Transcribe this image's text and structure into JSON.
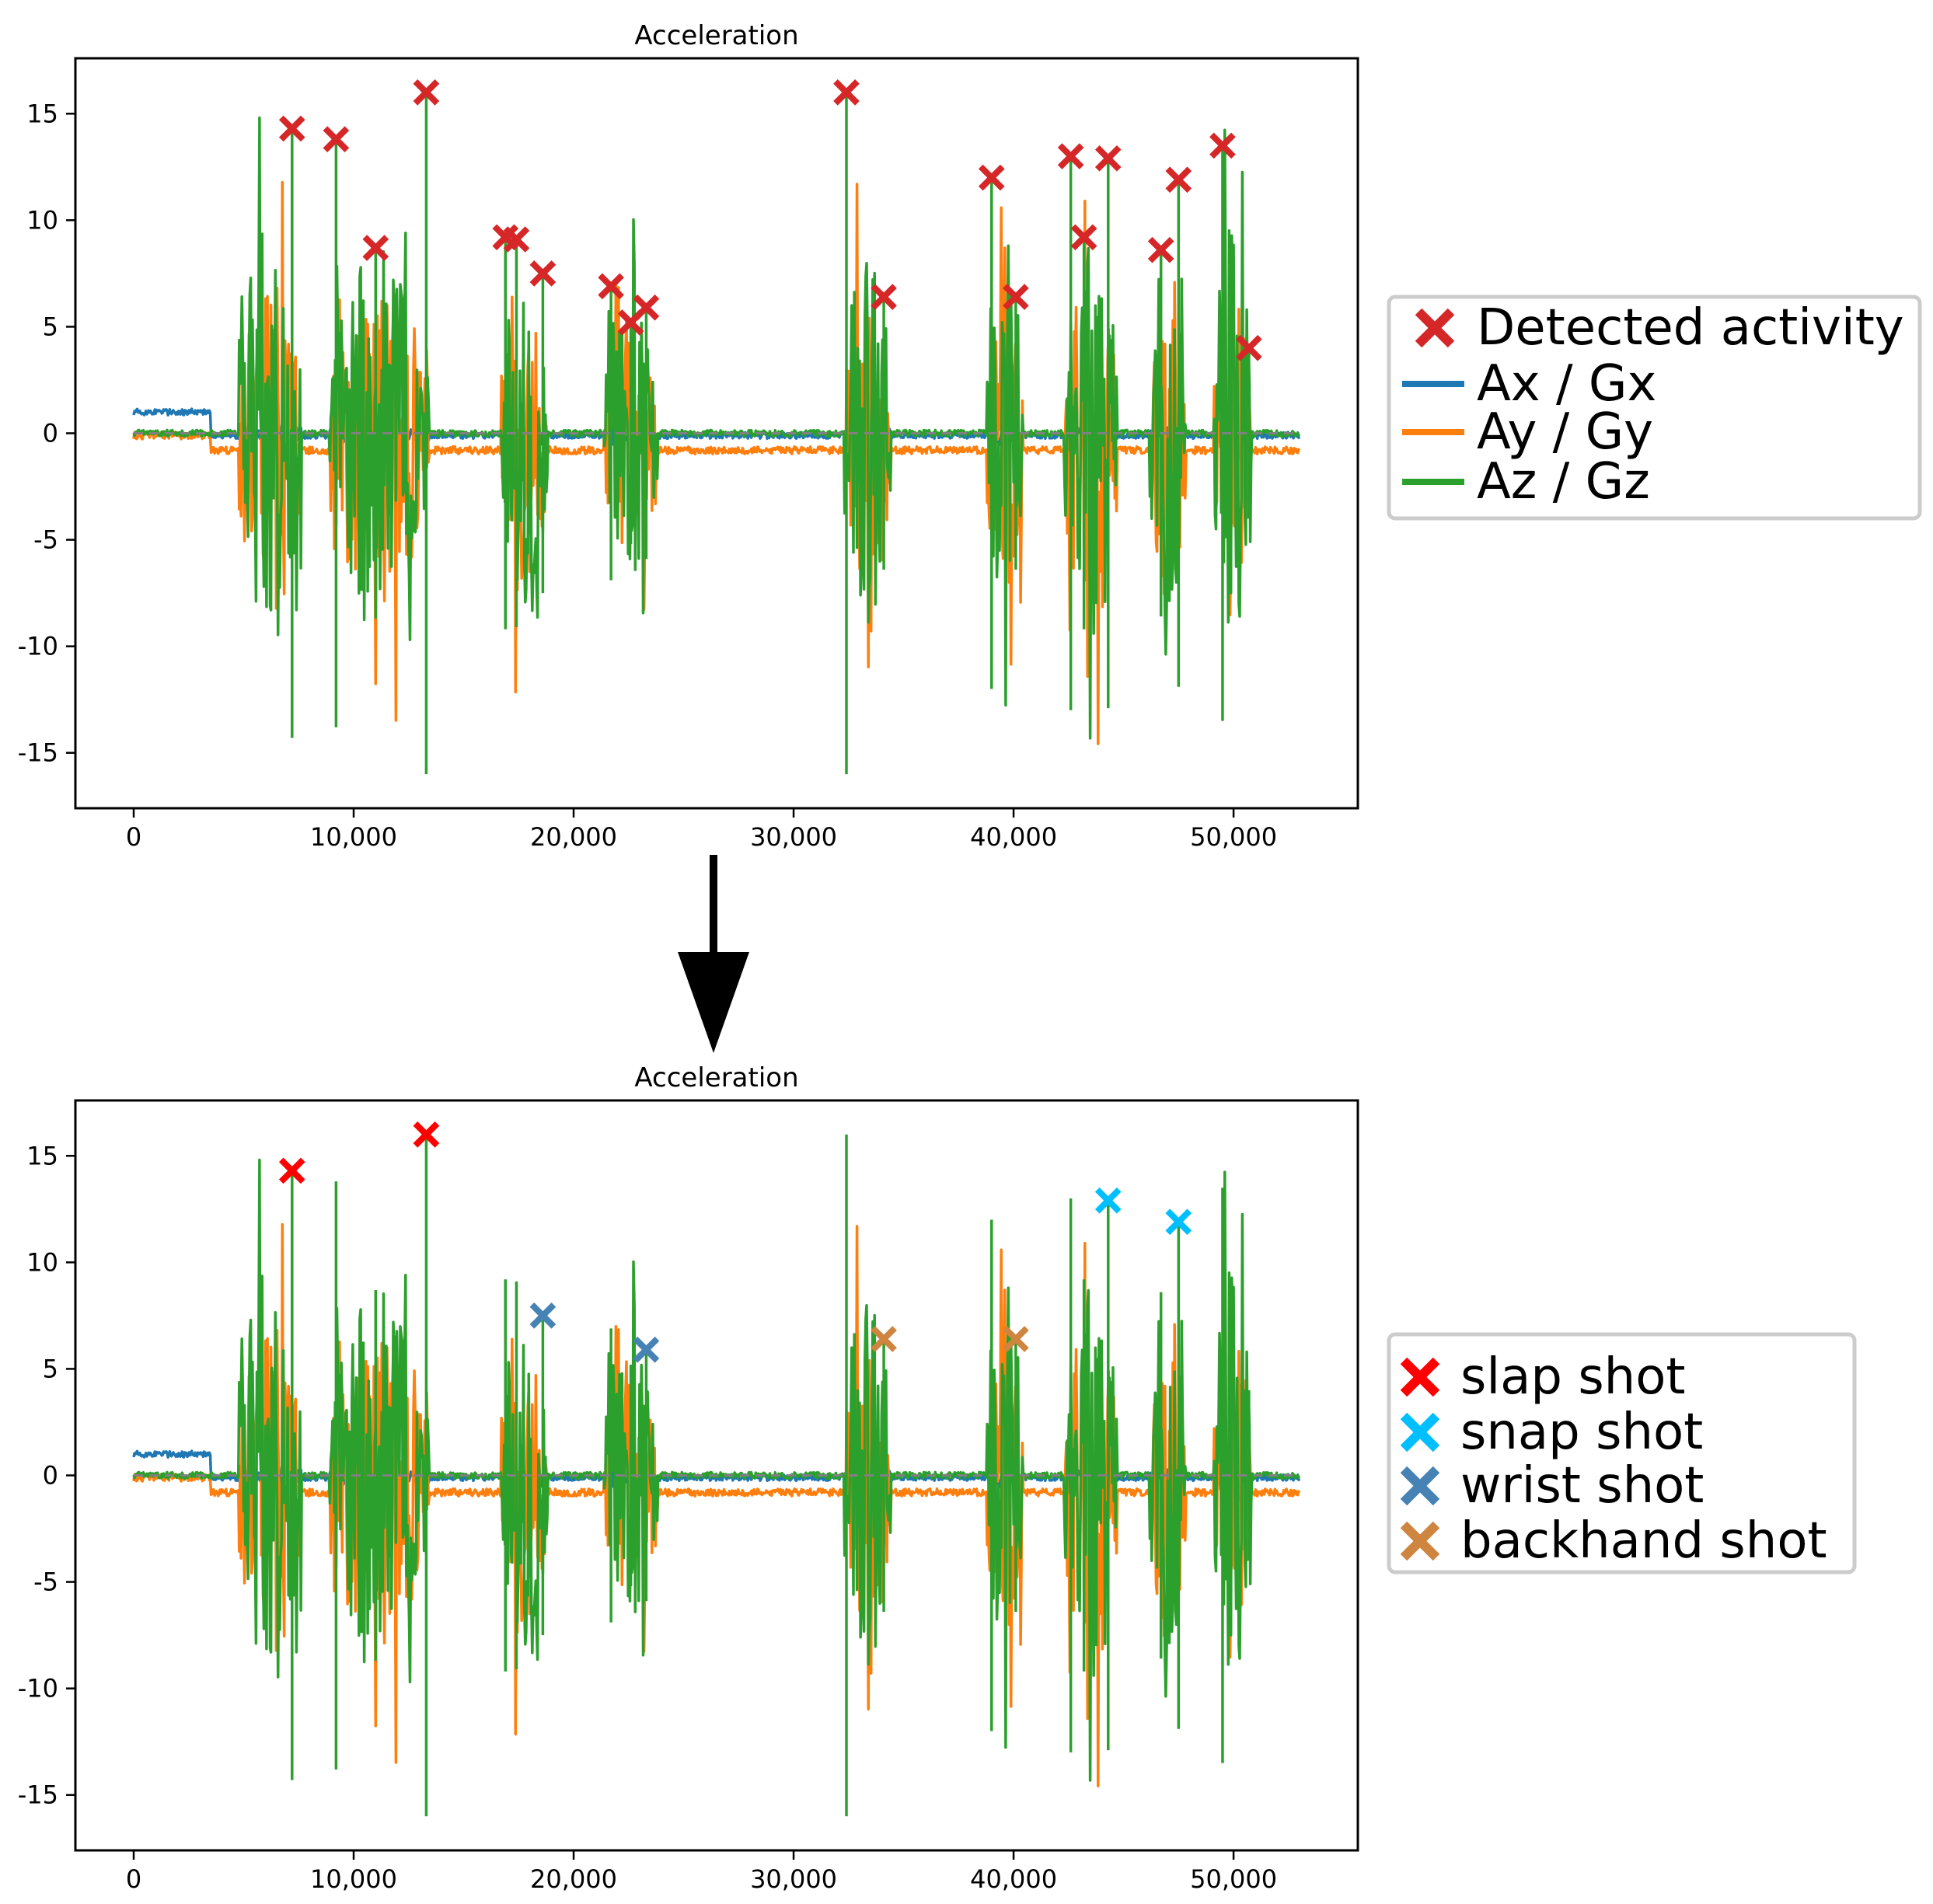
{
  "colors": {
    "ax": "#1f77b4",
    "ay": "#ff7f0e",
    "az": "#2ca02c",
    "detected": "#d62728",
    "slap": "#ff0000",
    "snap": "#00bfff",
    "wrist": "#4682b4",
    "backhand": "#cd853f",
    "zero_line": "#808080"
  },
  "chart_data": [
    {
      "type": "line",
      "title": "Acceleration",
      "xlabel": "",
      "ylabel": "",
      "xlim": [
        -2650,
        55650
      ],
      "ylim": [
        -17.6,
        17.6
      ],
      "xticks": [
        0,
        10000,
        20000,
        30000,
        40000,
        50000
      ],
      "xtick_labels": [
        "0",
        "10,000",
        "20,000",
        "30,000",
        "40,000",
        "50,000"
      ],
      "yticks": [
        15,
        10,
        5,
        0,
        -5,
        -10,
        -15
      ],
      "ytick_labels": [
        "15",
        "10",
        "5",
        "0",
        "-5",
        "-10",
        "-15"
      ],
      "zero_reference_line": true,
      "legend_position": "right",
      "series": [
        {
          "name": "Ax / Gx",
          "color_key": "ax",
          "baseline": -0.1,
          "description": "near 0, ~1.0 during first 3,500 samples"
        },
        {
          "name": "Ay / Gy",
          "color_key": "ay",
          "baseline": -0.8
        },
        {
          "name": "Az / Gz",
          "color_key": "az",
          "baseline": 0.0
        }
      ],
      "activity_bursts": [
        {
          "start": 4800,
          "end": 7600,
          "amp": 10
        },
        {
          "start": 8900,
          "end": 13400,
          "amp": 9
        },
        {
          "start": 16700,
          "end": 18800,
          "amp": 8
        },
        {
          "start": 21400,
          "end": 23800,
          "amp": 7
        },
        {
          "start": 32300,
          "end": 34400,
          "amp": 9
        },
        {
          "start": 38800,
          "end": 40400,
          "amp": 9
        },
        {
          "start": 42300,
          "end": 44700,
          "amp": 10
        },
        {
          "start": 46200,
          "end": 47800,
          "amp": 9
        },
        {
          "start": 49100,
          "end": 50800,
          "amp": 10
        }
      ],
      "markers": {
        "legend_label": "Detected activity",
        "color_key": "detected",
        "points": [
          {
            "x": 7200,
            "y": 14.3
          },
          {
            "x": 9200,
            "y": 13.8
          },
          {
            "x": 11000,
            "y": 8.7
          },
          {
            "x": 13300,
            "y": 16.0
          },
          {
            "x": 16900,
            "y": 9.2
          },
          {
            "x": 17400,
            "y": 9.1
          },
          {
            "x": 18600,
            "y": 7.5
          },
          {
            "x": 21700,
            "y": 6.9
          },
          {
            "x": 22600,
            "y": 5.2
          },
          {
            "x": 23300,
            "y": 5.9
          },
          {
            "x": 32400,
            "y": 16.0
          },
          {
            "x": 34100,
            "y": 6.4
          },
          {
            "x": 39000,
            "y": 12.0
          },
          {
            "x": 40100,
            "y": 6.4
          },
          {
            "x": 42600,
            "y": 13.0
          },
          {
            "x": 43200,
            "y": 9.2
          },
          {
            "x": 44300,
            "y": 12.9
          },
          {
            "x": 46700,
            "y": 8.6
          },
          {
            "x": 47500,
            "y": 11.9
          },
          {
            "x": 49500,
            "y": 13.5
          },
          {
            "x": 50700,
            "y": 4.0
          }
        ]
      }
    },
    {
      "type": "line",
      "title": "Acceleration",
      "xlabel": "",
      "ylabel": "",
      "xlim": [
        -2650,
        55650
      ],
      "ylim": [
        -17.6,
        17.6
      ],
      "xticks": [
        0,
        10000,
        20000,
        30000,
        40000,
        50000
      ],
      "xtick_labels": [
        "0",
        "10,000",
        "20,000",
        "30,000",
        "40,000",
        "50,000"
      ],
      "yticks": [
        15,
        10,
        5,
        0,
        -5,
        -10,
        -15
      ],
      "ytick_labels": [
        "15",
        "10",
        "5",
        "0",
        "-5",
        "-10",
        "-15"
      ],
      "zero_reference_line": true,
      "legend_position": "right",
      "series": [
        {
          "name": "Ax / Gx",
          "color_key": "ax",
          "baseline": -0.1
        },
        {
          "name": "Ay / Gy",
          "color_key": "ay",
          "baseline": -0.8
        },
        {
          "name": "Az / Gz",
          "color_key": "az",
          "baseline": 0.0
        }
      ],
      "classified_markers": [
        {
          "label": "slap shot",
          "color_key": "slap",
          "points": [
            {
              "x": 7200,
              "y": 14.3
            },
            {
              "x": 13300,
              "y": 16.0
            }
          ]
        },
        {
          "label": "snap shot",
          "color_key": "snap",
          "points": [
            {
              "x": 44300,
              "y": 12.9
            },
            {
              "x": 47500,
              "y": 11.9
            }
          ]
        },
        {
          "label": "wrist shot",
          "color_key": "wrist",
          "points": [
            {
              "x": 18600,
              "y": 7.5
            },
            {
              "x": 23300,
              "y": 5.9
            }
          ]
        },
        {
          "label": "backhand shot",
          "color_key": "backhand",
          "points": [
            {
              "x": 34100,
              "y": 6.4
            },
            {
              "x": 40100,
              "y": 6.4
            }
          ]
        }
      ]
    }
  ],
  "legends": {
    "top": {
      "items": [
        "Detected activity",
        "Ax / Gx",
        "Ay / Gy",
        "Az / Gz"
      ]
    },
    "bottom": {
      "items": [
        "slap shot",
        "snap shot",
        "wrist shot",
        "backhand shot"
      ]
    }
  }
}
